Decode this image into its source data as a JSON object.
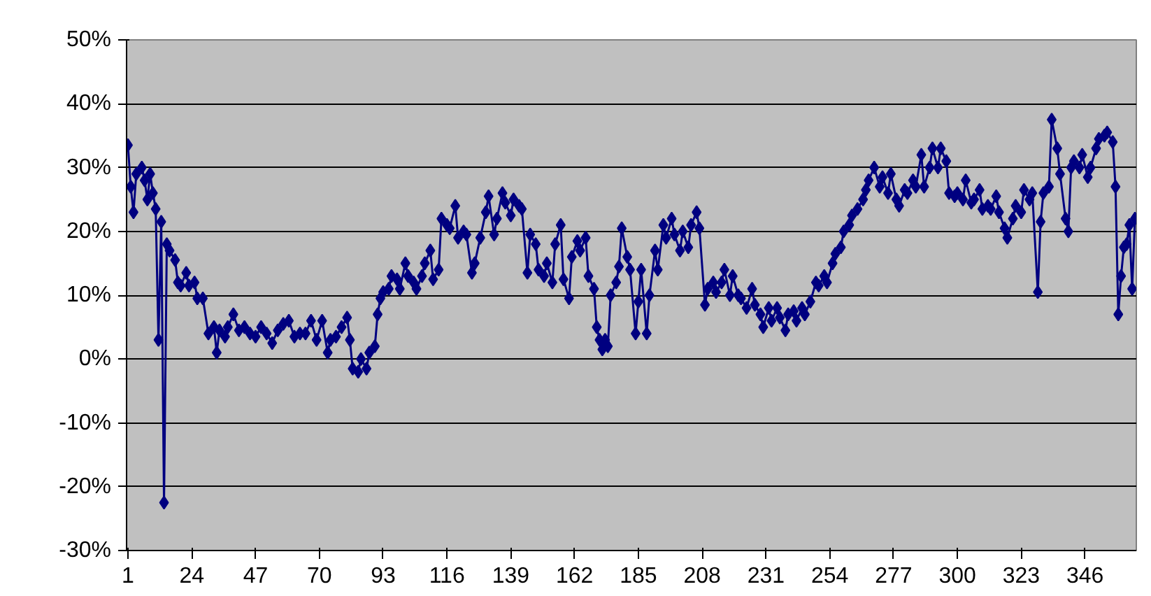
{
  "chart_data": {
    "type": "line",
    "marker": "diamond",
    "line_style": "solid",
    "grid": "y",
    "xlim": [
      0.5,
      364.5
    ],
    "xticks": [
      1,
      24,
      47,
      70,
      93,
      116,
      139,
      162,
      185,
      208,
      231,
      254,
      277,
      300,
      323,
      346
    ],
    "ylim": [
      -30,
      50
    ],
    "yticks": [
      {
        "value": -30,
        "label": "-30%"
      },
      {
        "value": -20,
        "label": "-20%"
      },
      {
        "value": -10,
        "label": "-10%"
      },
      {
        "value": 0,
        "label": "0%"
      },
      {
        "value": 10,
        "label": "10%"
      },
      {
        "value": 20,
        "label": "20%"
      },
      {
        "value": 30,
        "label": "30%"
      },
      {
        "value": 40,
        "label": "40%"
      },
      {
        "value": 50,
        "label": "50%"
      }
    ],
    "series": [
      {
        "color": "#000080",
        "x": [
          1,
          2,
          3,
          4,
          6,
          7,
          8,
          9,
          10,
          11,
          12,
          13,
          14,
          15,
          16,
          18,
          19,
          20,
          22,
          23,
          25,
          26,
          28,
          30,
          32,
          33,
          34,
          36,
          37,
          39,
          41,
          43,
          45,
          47,
          49,
          51,
          53,
          55,
          57,
          59,
          61,
          63,
          65,
          67,
          69,
          71,
          73,
          74,
          76,
          78,
          80,
          81,
          82,
          84,
          85,
          87,
          88,
          90,
          91,
          92,
          93,
          95,
          96,
          98,
          99,
          101,
          102,
          104,
          105,
          107,
          108,
          110,
          111,
          113,
          114,
          116,
          117,
          119,
          120,
          122,
          123,
          125,
          126,
          128,
          130,
          131,
          133,
          134,
          136,
          137,
          139,
          140,
          142,
          143,
          145,
          146,
          148,
          149,
          151,
          152,
          154,
          155,
          157,
          158,
          160,
          161,
          163,
          164,
          166,
          167,
          169,
          170,
          171,
          172,
          173,
          174,
          175,
          177,
          178,
          179,
          181,
          182,
          184,
          185,
          186,
          188,
          189,
          191,
          192,
          194,
          195,
          197,
          198,
          200,
          201,
          203,
          204,
          206,
          207,
          209,
          210,
          212,
          213,
          215,
          216,
          218,
          219,
          221,
          222,
          224,
          226,
          227,
          229,
          230,
          232,
          233,
          235,
          236,
          238,
          239,
          241,
          242,
          244,
          245,
          247,
          249,
          250,
          252,
          253,
          255,
          256,
          258,
          259,
          261,
          262,
          264,
          266,
          267,
          268,
          270,
          272,
          273,
          275,
          276,
          278,
          279,
          281,
          282,
          284,
          285,
          287,
          288,
          290,
          291,
          293,
          294,
          296,
          297,
          299,
          300,
          302,
          303,
          305,
          306,
          308,
          309,
          311,
          312,
          314,
          315,
          317,
          318,
          320,
          321,
          323,
          324,
          326,
          327,
          329,
          330,
          331,
          333,
          334,
          336,
          337,
          339,
          340,
          341,
          342,
          344,
          345,
          347,
          348,
          350,
          351,
          353,
          354,
          356,
          357,
          358,
          359,
          360,
          361,
          362,
          363,
          364
        ],
        "values": [
          33.5,
          27,
          23,
          29,
          30,
          28,
          25,
          29,
          26,
          23.5,
          3,
          21.5,
          -22.5,
          18,
          17,
          15.5,
          12,
          11.5,
          13.5,
          11.5,
          12,
          9.5,
          9.5,
          4,
          5,
          1,
          4.5,
          3.5,
          5,
          7,
          4.5,
          5,
          4,
          3.5,
          5,
          4,
          2.5,
          4.5,
          5.5,
          6,
          3.5,
          4,
          4,
          6,
          3,
          6,
          1,
          3,
          3.5,
          5,
          6.5,
          3,
          -1.5,
          -2,
          0,
          -1.5,
          1,
          2,
          7,
          9.5,
          10.5,
          11,
          13,
          12.5,
          11,
          15,
          13,
          12,
          11,
          13,
          15,
          17,
          12.5,
          14,
          22,
          21,
          20.5,
          24,
          19,
          20,
          19.5,
          13.5,
          15,
          19,
          23,
          25.5,
          19.5,
          22,
          26,
          24.5,
          22.5,
          25,
          24,
          23.5,
          13.5,
          19.5,
          18,
          14,
          13,
          15,
          12,
          18,
          21,
          12.5,
          9.5,
          16,
          18.5,
          17,
          19,
          13,
          11,
          5,
          3,
          1.5,
          3,
          2,
          10,
          12,
          14.5,
          20.5,
          16,
          14,
          4,
          9,
          14,
          4,
          10,
          17,
          14,
          21,
          19,
          22,
          19.5,
          17,
          20,
          17.5,
          21,
          23,
          20.5,
          8.5,
          11,
          12,
          10.5,
          12,
          14,
          10,
          13,
          10,
          9.5,
          8,
          11,
          8.5,
          7,
          5,
          8,
          6,
          8,
          6.5,
          4.5,
          7,
          7.5,
          6,
          8,
          7,
          9,
          12,
          11.5,
          13,
          12,
          15,
          16.5,
          17.5,
          20,
          21,
          22.5,
          23.5,
          25,
          26.5,
          28,
          30,
          27,
          28.5,
          26,
          29,
          25,
          24,
          26.5,
          26,
          28,
          27,
          32,
          27,
          30,
          33,
          30,
          33,
          31,
          26,
          25.5,
          26,
          25,
          28,
          24.5,
          25,
          26.5,
          23.5,
          24,
          23.5,
          25.5,
          23,
          20.5,
          19,
          22,
          24,
          23,
          26.5,
          25,
          26,
          10.5,
          21.5,
          26,
          27,
          37.5,
          33,
          29,
          22,
          20,
          30,
          31,
          30,
          32,
          28.5,
          30,
          33,
          34.5,
          35,
          35.5,
          34,
          27,
          7,
          13,
          17.5,
          18,
          21,
          11,
          22
        ]
      }
    ]
  }
}
